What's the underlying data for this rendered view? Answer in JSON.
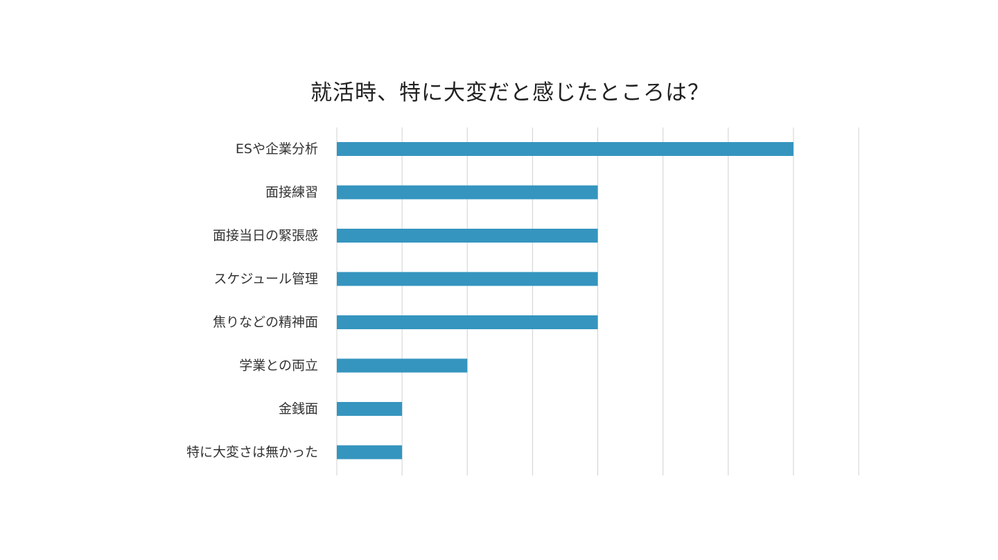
{
  "chart_data": {
    "type": "bar",
    "orientation": "horizontal",
    "title": "就活時、特に大変だと感じたところは？",
    "categories": [
      "ESや企業分析",
      "面接練習",
      "面接当日の緊張感",
      "スケジュール管理",
      "焦りなどの精神面",
      "学業との両立",
      "金銭面",
      "特に大変さは無かった"
    ],
    "values": [
      7,
      4,
      4,
      4,
      4,
      2,
      1,
      1
    ],
    "xlim": [
      0,
      8
    ],
    "grid": true,
    "bar_color": "#3595bf",
    "grid_color": "#d0d0d0",
    "xlabel": "",
    "ylabel": ""
  }
}
